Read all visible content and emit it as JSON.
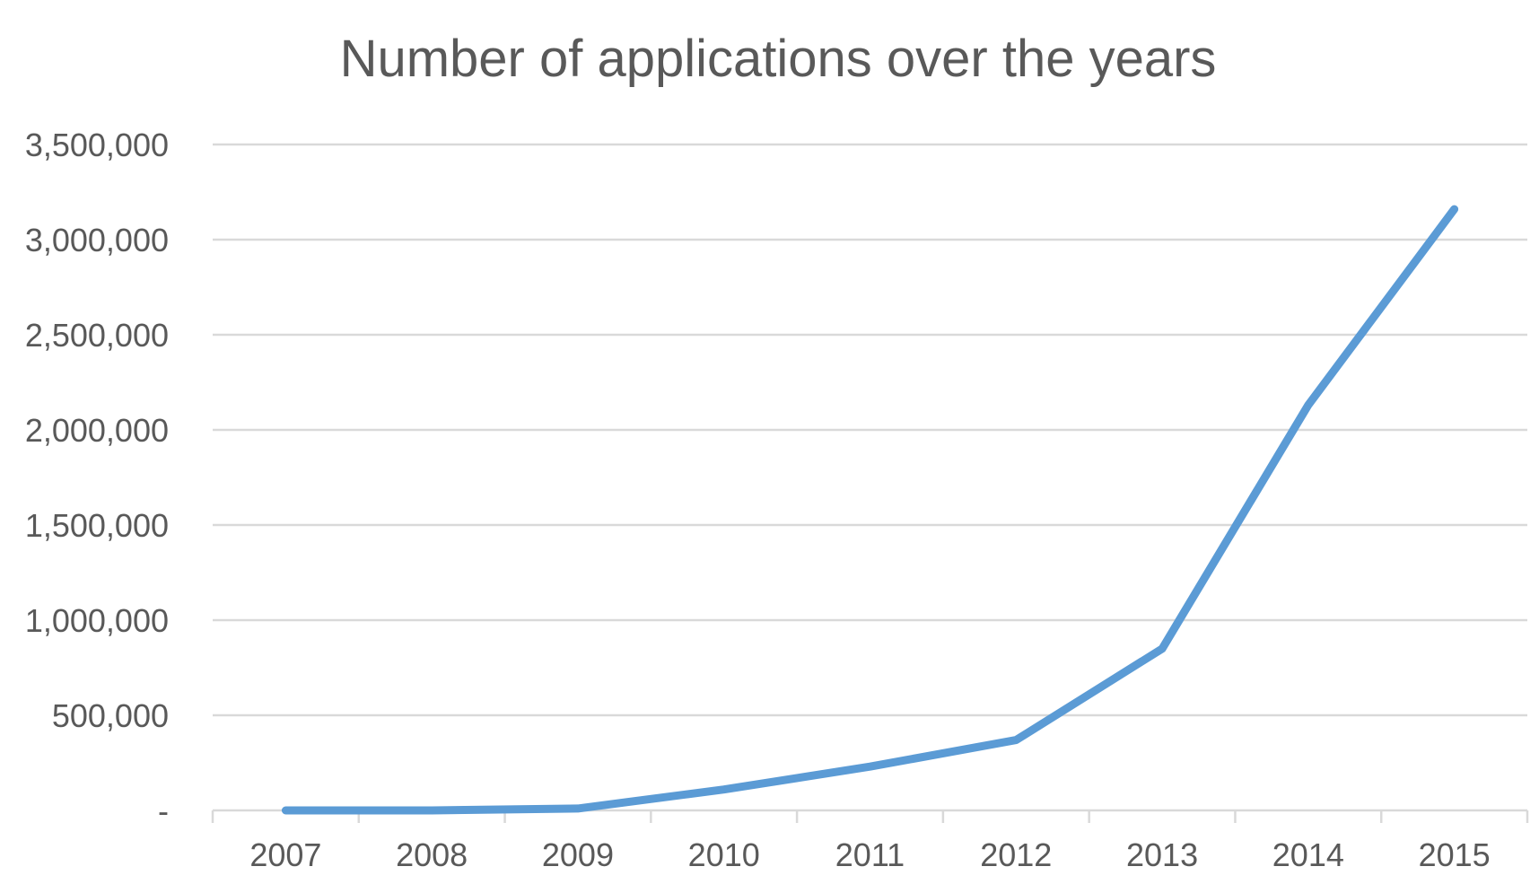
{
  "chart_data": {
    "type": "line",
    "title": "Number of applications over the years",
    "xlabel": "",
    "ylabel": "",
    "categories": [
      "2007",
      "2008",
      "2009",
      "2010",
      "2011",
      "2012",
      "2013",
      "2014",
      "2015"
    ],
    "series": [
      {
        "values": [
          0,
          0,
          10000,
          110000,
          230000,
          370000,
          850000,
          2130000,
          3160000
        ],
        "color": "#5b9bd5"
      }
    ],
    "ylim": [
      0,
      3500000
    ],
    "y_ticks": [
      {
        "value": 0,
        "label": "-"
      },
      {
        "value": 500000,
        "label": "500,000"
      },
      {
        "value": 1000000,
        "label": "1,000,000"
      },
      {
        "value": 1500000,
        "label": "1,500,000"
      },
      {
        "value": 2000000,
        "label": "2,000,000"
      },
      {
        "value": 2500000,
        "label": "2,500,000"
      },
      {
        "value": 3000000,
        "label": "3,000,000"
      },
      {
        "value": 3500000,
        "label": "3,500,000"
      }
    ],
    "grid": true,
    "legend": "none"
  }
}
